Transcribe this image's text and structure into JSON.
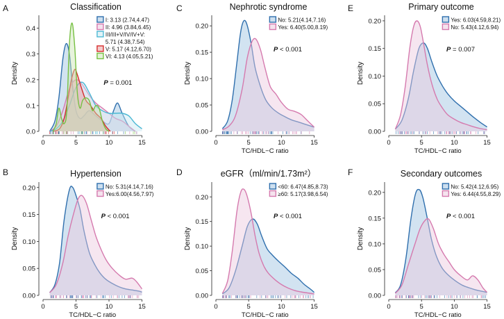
{
  "chart_data": [
    {
      "panel": "A",
      "type": "area",
      "title": "Classification",
      "xlabel": "",
      "ylabel": "Density",
      "xlim": [
        0,
        16
      ],
      "ylim": [
        0,
        0.45
      ],
      "xticks": [
        "0",
        "5",
        "10",
        "15"
      ],
      "yticks": [
        "0.0",
        "0.1",
        "0.2",
        "0.3",
        "0.4"
      ],
      "annotation_prefix": "P",
      "annotation_suffix": " = 0.001",
      "legend_position": "top-right",
      "series": [
        {
          "name": "I: 3.13 (2.74,4.47)",
          "color": "#2f6fad",
          "fill": "#9cc0e0",
          "x": [
            1,
            1.8,
            2.4,
            3.0,
            3.5,
            4.0,
            4.5,
            5.0,
            5.6,
            6.2,
            7.0,
            8.0,
            9.0,
            10.0,
            10.7,
            11.3,
            12.0,
            13.0,
            14.0
          ],
          "y": [
            0.0,
            0.04,
            0.13,
            0.28,
            0.34,
            0.3,
            0.17,
            0.08,
            0.05,
            0.06,
            0.08,
            0.06,
            0.04,
            0.03,
            0.08,
            0.11,
            0.07,
            0.02,
            0.0
          ]
        },
        {
          "name": "II: 4.96 (3.84,6.45)",
          "color": "#d57aae",
          "fill": "#ecc7dd",
          "x": [
            1,
            2,
            3,
            3.8,
            4.5,
            5.2,
            6.0,
            7.0,
            8.0,
            9.0,
            10.0,
            11.0,
            12.0,
            13.0,
            14.0
          ],
          "y": [
            0.0,
            0.02,
            0.08,
            0.15,
            0.19,
            0.2,
            0.18,
            0.14,
            0.11,
            0.09,
            0.07,
            0.05,
            0.04,
            0.02,
            0.0
          ]
        },
        {
          "name": "III/III+V/IV/IV+V: 5.71 (4.38,7.54)",
          "color": "#4cb8d4",
          "fill": "#c6e7f1",
          "x": [
            1,
            2,
            3,
            4,
            5,
            6,
            7,
            8,
            9,
            10,
            11,
            12,
            13,
            14,
            15
          ],
          "y": [
            0.0,
            0.01,
            0.04,
            0.1,
            0.17,
            0.19,
            0.15,
            0.1,
            0.08,
            0.07,
            0.07,
            0.07,
            0.06,
            0.03,
            0.01
          ]
        },
        {
          "name": "V: 5.17 (4.12,6.70)",
          "color": "#d62d2d",
          "fill": "#e89a9a",
          "x": [
            1.5,
            2.5,
            3.2,
            3.8,
            4.3,
            4.8,
            5.2,
            5.8,
            6.5,
            7.2,
            8.0,
            8.8,
            9.5,
            10.2
          ],
          "y": [
            0.0,
            0.01,
            0.05,
            0.13,
            0.2,
            0.24,
            0.22,
            0.17,
            0.12,
            0.1,
            0.07,
            0.05,
            0.02,
            0.0
          ]
        },
        {
          "name": "VI: 4.13 (4.05,5.21)",
          "color": "#77c043",
          "fill": "#c9e5b2",
          "x": [
            1.5,
            2.0,
            2.4,
            2.8,
            3.2,
            3.6,
            4.0,
            4.4,
            4.8,
            5.2,
            5.6,
            6.0,
            6.5,
            7.0,
            7.5,
            8.0,
            8.5,
            9.0,
            9.5,
            10.0
          ],
          "y": [
            0.0,
            0.03,
            0.09,
            0.05,
            0.03,
            0.08,
            0.34,
            0.42,
            0.33,
            0.15,
            0.09,
            0.12,
            0.13,
            0.12,
            0.08,
            0.1,
            0.09,
            0.04,
            0.01,
            0.0
          ]
        }
      ]
    },
    {
      "panel": "B",
      "type": "area",
      "title": "Hypertension",
      "xlabel": "TC/HDL−C ratio",
      "ylabel": "Density",
      "xlim": [
        0,
        16
      ],
      "ylim": [
        0,
        0.21
      ],
      "xticks": [
        "0",
        "5",
        "10",
        "15"
      ],
      "yticks": [
        "0.00",
        "0.05",
        "0.10",
        "0.15",
        "0.20"
      ],
      "annotation_prefix": "P",
      "annotation_suffix": " < 0.001",
      "legend_position": "top-right",
      "series": [
        {
          "name": "No: 5.31(4.14,7.16)",
          "color": "#2f6fad",
          "fill": "#9cc0e0",
          "x": [
            1,
            1.8,
            2.5,
            3.2,
            4.0,
            4.5,
            5.0,
            5.6,
            6.2,
            7.0,
            7.8,
            8.6,
            9.5,
            10.5,
            11.5,
            12.5,
            13.5,
            14.5,
            15
          ],
          "y": [
            0.005,
            0.02,
            0.06,
            0.14,
            0.196,
            0.2,
            0.185,
            0.16,
            0.12,
            0.08,
            0.058,
            0.042,
            0.03,
            0.022,
            0.016,
            0.012,
            0.01,
            0.008,
            0.006
          ]
        },
        {
          "name": "Yes:6.00(4.56,7.97)",
          "color": "#d57aae",
          "fill": "#ecc7dd",
          "x": [
            1,
            2,
            3,
            3.8,
            4.6,
            5.3,
            5.9,
            6.6,
            7.3,
            8.0,
            8.8,
            9.6,
            10.5,
            11.5,
            12.5,
            13.5,
            14.2,
            15
          ],
          "y": [
            0.005,
            0.02,
            0.06,
            0.11,
            0.15,
            0.178,
            0.185,
            0.17,
            0.14,
            0.11,
            0.085,
            0.065,
            0.05,
            0.038,
            0.03,
            0.032,
            0.025,
            0.012
          ]
        }
      ]
    },
    {
      "panel": "C",
      "type": "area",
      "title": "Nephrotic syndrome",
      "xlabel": "TC/HDL−C ratio",
      "ylabel": "Density",
      "xlim": [
        0,
        16
      ],
      "ylim": [
        0,
        0.22
      ],
      "xticks": [
        "0",
        "5",
        "10",
        "15"
      ],
      "yticks": [
        "0.00",
        "0.05",
        "0.10",
        "0.15",
        "0.20"
      ],
      "annotation_prefix": "P",
      "annotation_suffix": " < 0.001",
      "legend_position": "top-right",
      "series": [
        {
          "name": "No: 5.21(4.14,7.16)",
          "color": "#2f6fad",
          "fill": "#9cc0e0",
          "x": [
            1,
            1.8,
            2.5,
            3.2,
            3.8,
            4.3,
            4.8,
            5.4,
            6.0,
            6.8,
            7.6,
            8.5,
            9.5,
            10.5,
            11.5,
            12.5,
            13.5,
            14.5,
            15
          ],
          "y": [
            0.005,
            0.02,
            0.06,
            0.13,
            0.19,
            0.21,
            0.2,
            0.165,
            0.12,
            0.085,
            0.06,
            0.045,
            0.035,
            0.028,
            0.022,
            0.018,
            0.014,
            0.01,
            0.008
          ]
        },
        {
          "name": "Yes: 6.40(5.00,8.19)",
          "color": "#d57aae",
          "fill": "#ecc7dd",
          "x": [
            1,
            2,
            3,
            4,
            4.8,
            5.5,
            6.1,
            6.8,
            7.5,
            8.3,
            9.2,
            10.0,
            11.0,
            12.0,
            13.0,
            14.0,
            15
          ],
          "y": [
            0.003,
            0.01,
            0.03,
            0.08,
            0.14,
            0.17,
            0.175,
            0.155,
            0.12,
            0.085,
            0.07,
            0.055,
            0.042,
            0.038,
            0.032,
            0.02,
            0.008
          ]
        }
      ]
    },
    {
      "panel": "D",
      "type": "area",
      "title": "eGFR（ml/min/1.73m²）",
      "xlabel": "TC/HDL−C ratio",
      "ylabel": "Density",
      "xlim": [
        0,
        16
      ],
      "ylim": [
        0,
        0.23
      ],
      "xticks": [
        "0",
        "5",
        "10",
        "15"
      ],
      "yticks": [
        "0.00",
        "0.05",
        "0.10",
        "0.15",
        "0.20"
      ],
      "annotation_prefix": "P",
      "annotation_suffix": " < 0.001",
      "legend_position": "top-right",
      "series": [
        {
          "name": "<60: 6.47(4.85,8.73)",
          "color": "#2f6fad",
          "fill": "#9cc0e0",
          "x": [
            1,
            2,
            3,
            4,
            4.8,
            5.6,
            6.3,
            7.0,
            7.8,
            8.6,
            9.5,
            10.5,
            11.5,
            12.5,
            13.5,
            14.5,
            15
          ],
          "y": [
            0.003,
            0.015,
            0.05,
            0.1,
            0.14,
            0.155,
            0.145,
            0.12,
            0.095,
            0.082,
            0.07,
            0.058,
            0.045,
            0.035,
            0.022,
            0.012,
            0.006
          ]
        },
        {
          "name": "≥60: 5.17(3.98,6.54)",
          "color": "#d57aae",
          "fill": "#ecc7dd",
          "x": [
            1,
            1.8,
            2.5,
            3.2,
            3.8,
            4.3,
            4.8,
            5.4,
            6.0,
            6.6,
            7.3,
            8.0,
            9.0,
            10.0,
            11.0,
            12.0,
            13.0,
            14.0,
            15
          ],
          "y": [
            0.004,
            0.03,
            0.09,
            0.17,
            0.21,
            0.215,
            0.2,
            0.165,
            0.12,
            0.085,
            0.06,
            0.045,
            0.032,
            0.022,
            0.015,
            0.01,
            0.007,
            0.005,
            0.003
          ]
        }
      ]
    },
    {
      "panel": "E",
      "type": "area",
      "title": "Primary outcome",
      "xlabel": "TC/HDL−C ratio",
      "ylabel": "Density",
      "xlim": [
        0,
        16
      ],
      "ylim": [
        0,
        0.21
      ],
      "xticks": [
        "0",
        "5",
        "10",
        "15"
      ],
      "yticks": [
        "0.00",
        "0.05",
        "0.10",
        "0.15",
        "0.20"
      ],
      "annotation_prefix": "P",
      "annotation_suffix": " = 0.007",
      "legend_position": "top-right",
      "series": [
        {
          "name": "Yes: 6.03(4.59,8.21)",
          "color": "#2f6fad",
          "fill": "#9cc0e0",
          "x": [
            1,
            2,
            3,
            3.8,
            4.6,
            5.3,
            5.9,
            6.6,
            7.4,
            8.2,
            9.0,
            10.0,
            11.0,
            12.0,
            13.0,
            14.0,
            15
          ],
          "y": [
            0.004,
            0.02,
            0.06,
            0.11,
            0.15,
            0.16,
            0.15,
            0.125,
            0.1,
            0.082,
            0.068,
            0.055,
            0.045,
            0.035,
            0.025,
            0.016,
            0.008
          ]
        },
        {
          "name": "No: 5.43(4.12,6.94)",
          "color": "#d57aae",
          "fill": "#ecc7dd",
          "x": [
            1,
            1.8,
            2.5,
            3.2,
            3.8,
            4.3,
            4.8,
            5.3,
            5.9,
            6.6,
            7.4,
            8.2,
            9.0,
            10.0,
            11.0,
            12.0,
            13.0,
            14.0,
            15
          ],
          "y": [
            0.004,
            0.03,
            0.08,
            0.15,
            0.19,
            0.2,
            0.19,
            0.16,
            0.12,
            0.085,
            0.058,
            0.042,
            0.03,
            0.022,
            0.016,
            0.012,
            0.008,
            0.005,
            0.003
          ]
        }
      ]
    },
    {
      "panel": "F",
      "type": "area",
      "title": "Secondary outcomes",
      "xlabel": "TC/HDL−C ratio",
      "ylabel": "Density",
      "xlim": [
        0,
        16
      ],
      "ylim": [
        0,
        0.22
      ],
      "xticks": [
        "0",
        "5",
        "10",
        "15"
      ],
      "yticks": [
        "0.00",
        "0.05",
        "0.10",
        "0.15",
        "0.20"
      ],
      "annotation_prefix": "P",
      "annotation_suffix": " < 0.001",
      "legend_position": "top-right",
      "series": [
        {
          "name": "No: 5.42(4.12,6.95)",
          "color": "#2f6fad",
          "fill": "#9cc0e0",
          "x": [
            1,
            1.8,
            2.6,
            3.4,
            4.1,
            4.7,
            5.2,
            5.8,
            6.5,
            7.3,
            8.2,
            9.2,
            10.2,
            11.2,
            12.2,
            13.2,
            14.2,
            15
          ],
          "y": [
            0.005,
            0.02,
            0.07,
            0.15,
            0.198,
            0.205,
            0.19,
            0.155,
            0.11,
            0.075,
            0.052,
            0.038,
            0.028,
            0.02,
            0.015,
            0.011,
            0.008,
            0.006
          ]
        },
        {
          "name": "Yes: 6.44(4.55,8.29)",
          "color": "#d57aae",
          "fill": "#ecc7dd",
          "x": [
            1,
            2,
            3,
            4,
            4.8,
            5.5,
            6.1,
            6.8,
            7.6,
            8.4,
            9.2,
            10.0,
            11.0,
            12.0,
            12.8,
            13.6,
            14.4,
            15
          ],
          "y": [
            0.004,
            0.02,
            0.06,
            0.1,
            0.13,
            0.145,
            0.148,
            0.13,
            0.1,
            0.08,
            0.065,
            0.05,
            0.038,
            0.03,
            0.038,
            0.03,
            0.014,
            0.006
          ]
        }
      ]
    }
  ]
}
